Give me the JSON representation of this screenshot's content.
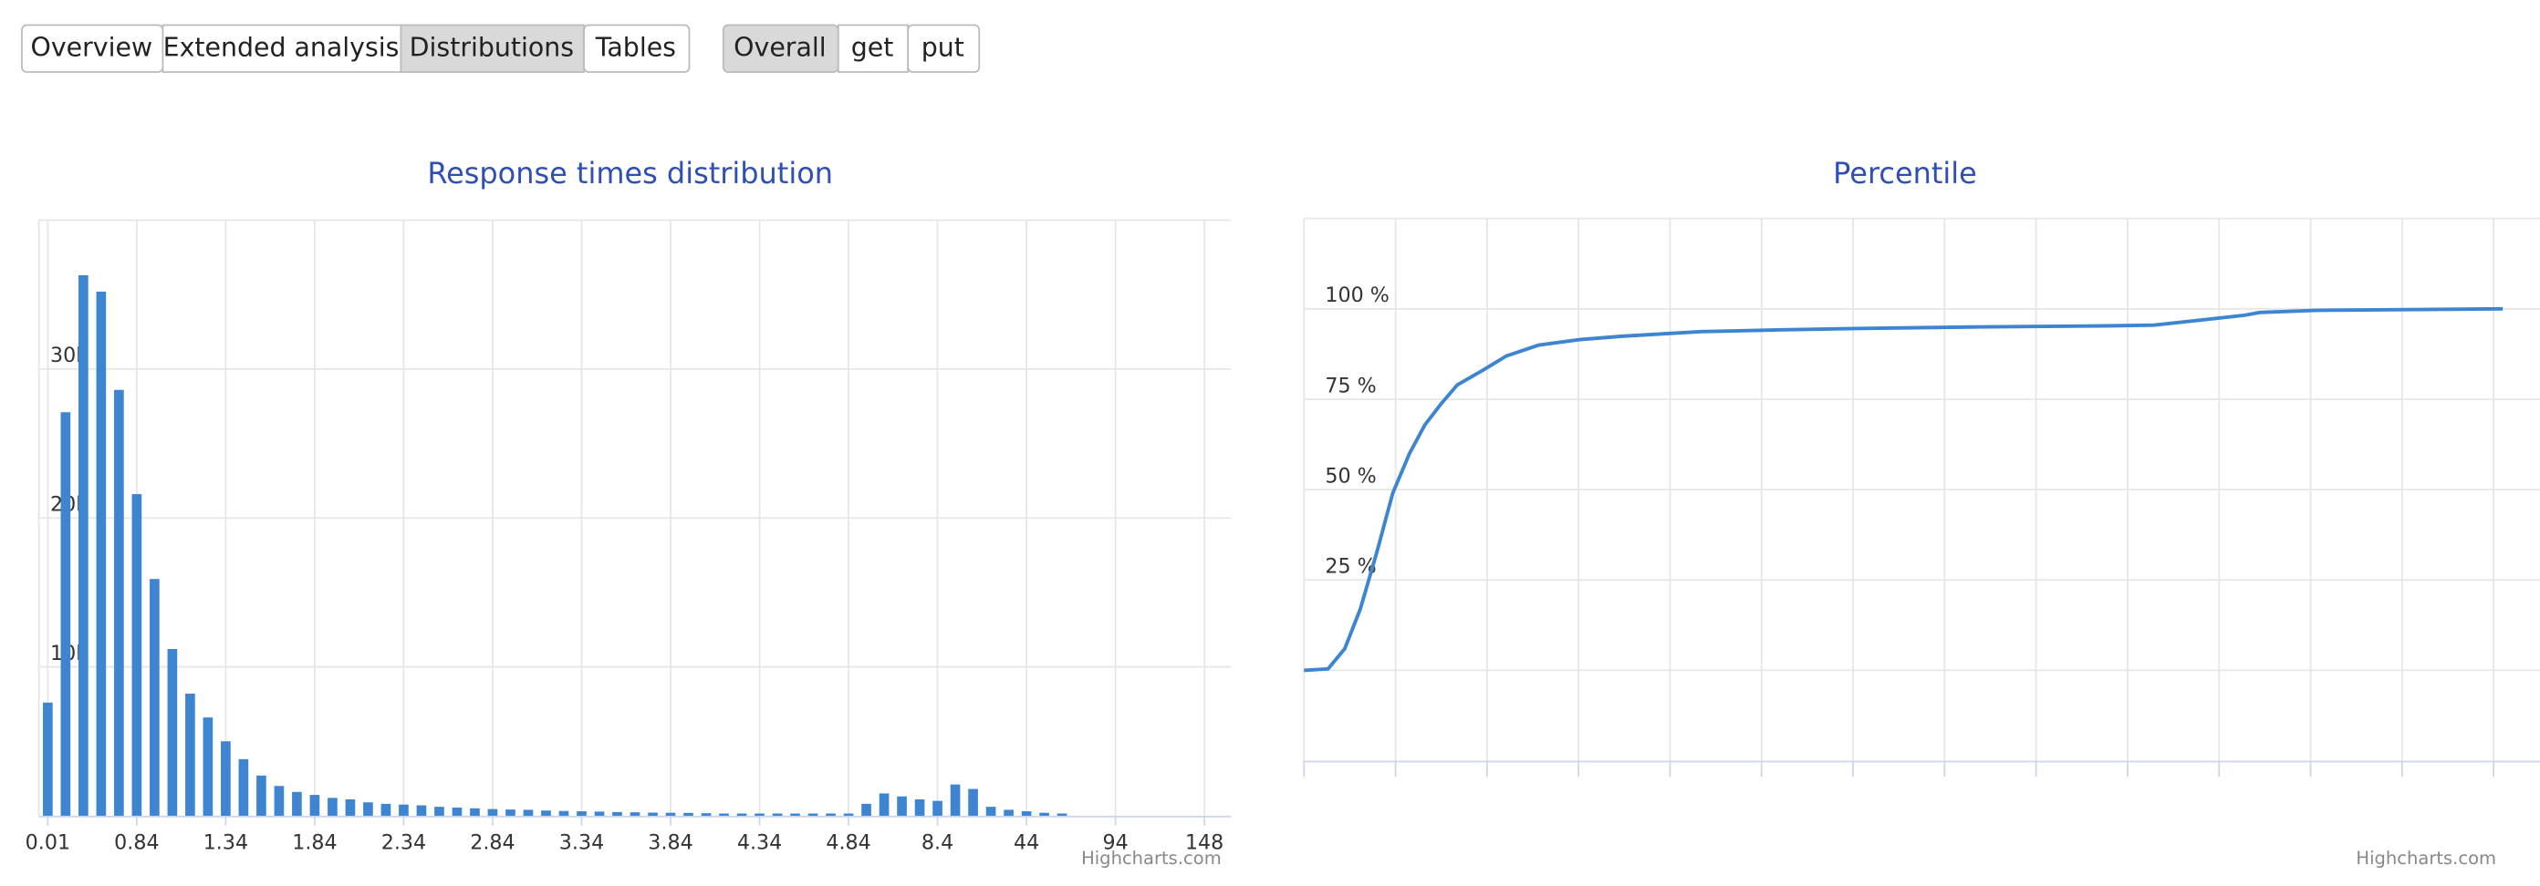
{
  "tabs": [
    "Overview",
    "Extended analysis",
    "Distributions",
    "Tables"
  ],
  "active_tab": 2,
  "filters": [
    "Overall",
    "get",
    "put"
  ],
  "active_filter": 0,
  "charts": [
    {
      "chart_data": {
        "type": "bar",
        "title": "Response times distribution",
        "color": "#3d85d1",
        "categories": [
          "0.01",
          null,
          null,
          null,
          null,
          "0.84",
          null,
          null,
          null,
          null,
          "1.34",
          null,
          null,
          null,
          null,
          "1.84",
          null,
          null,
          null,
          null,
          "2.34",
          null,
          null,
          null,
          null,
          "2.84",
          null,
          null,
          null,
          null,
          "3.34",
          null,
          null,
          null,
          null,
          "3.84",
          null,
          null,
          null,
          null,
          "4.34",
          null,
          null,
          null,
          null,
          "4.84",
          null,
          null,
          null,
          null,
          "8.4",
          null,
          null,
          null,
          null,
          "44",
          null,
          null,
          null,
          null,
          "94",
          null,
          null,
          null,
          null,
          "148",
          null
        ],
        "values": [
          7600,
          27100,
          36300,
          35200,
          28600,
          21600,
          15900,
          11200,
          8200,
          6600,
          5000,
          3800,
          2700,
          2000,
          1600,
          1400,
          1200,
          1100,
          900,
          800,
          750,
          700,
          600,
          550,
          500,
          450,
          420,
          400,
          350,
          320,
          300,
          280,
          250,
          230,
          210,
          200,
          190,
          170,
          150,
          150,
          150,
          150,
          150,
          150,
          150,
          150,
          800,
          1500,
          1300,
          1100,
          1000,
          2100,
          1800,
          600,
          400,
          300,
          200,
          150,
          0,
          0,
          0,
          0,
          0,
          0,
          0,
          0,
          0
        ],
        "ylim": [
          0,
          40000
        ],
        "yticks": [
          {
            "value": 10000,
            "label": "10k"
          },
          {
            "value": 20000,
            "label": "20k"
          },
          {
            "value": 30000,
            "label": "30k"
          }
        ],
        "grid": true,
        "credits": "Highcharts.com"
      }
    },
    {
      "chart_data": {
        "type": "line",
        "title": "Percentile",
        "color": "#3d85d1",
        "x": [
          0,
          2,
          3.4,
          4.7,
          6.1,
          7.4,
          8.8,
          10.1,
          11.5,
          12.8,
          14.9,
          16.9,
          19.6,
          23,
          26.4,
          33.1,
          39.9,
          46.6,
          56,
          66.9,
          70.9,
          78.4,
          79.7,
          84.5,
          100
        ],
        "values": [
          0,
          0.4,
          6,
          17,
          33,
          49,
          60,
          68,
          74,
          79,
          83,
          87,
          90,
          91.5,
          92.4,
          93.7,
          94.2,
          94.6,
          95,
          95.3,
          95.5,
          98.2,
          99,
          99.6,
          100
        ],
        "xlim": [
          0,
          100
        ],
        "ylim": [
          -25,
          125
        ],
        "yticks": [
          {
            "value": 25,
            "label": "25 %"
          },
          {
            "value": 50,
            "label": "50 %"
          },
          {
            "value": 75,
            "label": "75 %"
          },
          {
            "value": 100,
            "label": "100 %"
          }
        ],
        "grid": true,
        "credits": "Highcharts.com"
      }
    }
  ]
}
